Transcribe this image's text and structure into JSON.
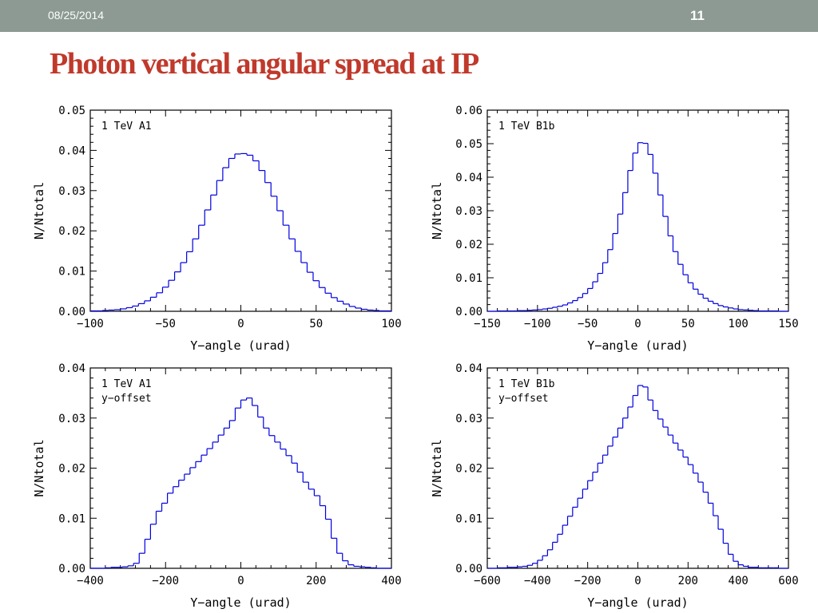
{
  "header": {
    "date": "08/25/2014",
    "page_number": "11"
  },
  "slide": {
    "title": "Photon vertical angular spread at IP"
  },
  "colors": {
    "header_bar": "#8c9a93",
    "title": "#c0392b",
    "histogram": "#0000e0"
  },
  "chart_data": [
    {
      "type": "histogram",
      "annotation": [
        "1 TeV A1"
      ],
      "xlabel": "Y−angle (urad)",
      "ylabel": "N/Ntotal",
      "xlim": [
        -100,
        100
      ],
      "ylim": [
        0,
        0.05
      ],
      "xticks": [
        -100,
        -50,
        0,
        50,
        100
      ],
      "xtick_labels": [
        "−100",
        "−50",
        "0",
        "50",
        "100"
      ],
      "yticks": [
        0,
        0.01,
        0.02,
        0.03,
        0.04,
        0.05
      ],
      "ytick_labels": [
        "0.00",
        "0.01",
        "0.02",
        "0.03",
        "0.04",
        "0.05"
      ],
      "bin_width": 4,
      "x": [
        -100,
        -96,
        -92,
        -88,
        -84,
        -80,
        -76,
        -72,
        -68,
        -64,
        -60,
        -56,
        -52,
        -48,
        -44,
        -40,
        -36,
        -32,
        -28,
        -24,
        -20,
        -16,
        -12,
        -8,
        -4,
        0,
        4,
        8,
        12,
        16,
        20,
        24,
        28,
        32,
        36,
        40,
        44,
        48,
        52,
        56,
        60,
        64,
        68,
        72,
        76,
        80,
        84,
        88,
        92,
        96
      ],
      "values": [
        0.0001,
        0.0001,
        0.0002,
        0.0003,
        0.0004,
        0.0006,
        0.0009,
        0.0013,
        0.0019,
        0.0026,
        0.0035,
        0.0046,
        0.006,
        0.0077,
        0.0098,
        0.0121,
        0.0148,
        0.018,
        0.0214,
        0.0252,
        0.0289,
        0.0325,
        0.0357,
        0.038,
        0.0391,
        0.0392,
        0.0388,
        0.0374,
        0.035,
        0.032,
        0.0286,
        0.025,
        0.0214,
        0.018,
        0.0149,
        0.0121,
        0.0097,
        0.0076,
        0.0059,
        0.0045,
        0.0034,
        0.0025,
        0.0018,
        0.0012,
        0.0008,
        0.0005,
        0.0003,
        0.0002,
        0.0001,
        0.0001
      ]
    },
    {
      "type": "histogram",
      "annotation": [
        "1 TeV B1b"
      ],
      "xlabel": "Y−angle (urad)",
      "ylabel": "N/Ntotal",
      "xlim": [
        -150,
        150
      ],
      "ylim": [
        0,
        0.06
      ],
      "xticks": [
        -150,
        -100,
        -50,
        0,
        50,
        100,
        150
      ],
      "xtick_labels": [
        "−150",
        "−100",
        "−50",
        "0",
        "50",
        "100",
        "150"
      ],
      "yticks": [
        0,
        0.01,
        0.02,
        0.03,
        0.04,
        0.05,
        0.06
      ],
      "ytick_labels": [
        "0.00",
        "0.01",
        "0.02",
        "0.03",
        "0.04",
        "0.05",
        "0.06"
      ],
      "bin_width": 5,
      "x": [
        -140,
        -135,
        -130,
        -125,
        -120,
        -115,
        -110,
        -105,
        -100,
        -95,
        -90,
        -85,
        -80,
        -75,
        -70,
        -65,
        -60,
        -55,
        -50,
        -45,
        -40,
        -35,
        -30,
        -25,
        -20,
        -15,
        -10,
        -5,
        0,
        5,
        10,
        15,
        20,
        25,
        30,
        35,
        40,
        45,
        50,
        55,
        60,
        65,
        70,
        75,
        80,
        85,
        90,
        95,
        100,
        105,
        110,
        115,
        120,
        125,
        130,
        135
      ],
      "values": [
        0.0001,
        0.0001,
        0.0001,
        0.0001,
        0.0002,
        0.0002,
        0.0003,
        0.0004,
        0.0005,
        0.0007,
        0.0009,
        0.0012,
        0.0015,
        0.0019,
        0.0025,
        0.0032,
        0.0041,
        0.0053,
        0.0068,
        0.0088,
        0.0113,
        0.0145,
        0.0184,
        0.0232,
        0.029,
        0.0354,
        0.042,
        0.0472,
        0.0503,
        0.0501,
        0.0468,
        0.0412,
        0.0347,
        0.0283,
        0.0225,
        0.0178,
        0.014,
        0.0109,
        0.0085,
        0.0066,
        0.0051,
        0.0039,
        0.003,
        0.0023,
        0.0017,
        0.0013,
        0.001,
        0.0007,
        0.0005,
        0.0004,
        0.0003,
        0.0002,
        0.0001,
        0.0001,
        0.0001,
        0.0001
      ]
    },
    {
      "type": "histogram",
      "annotation": [
        "1 TeV A1",
        "y−offset"
      ],
      "xlabel": "Y−angle (urad)",
      "ylabel": "N/Ntotal",
      "xlim": [
        -400,
        400
      ],
      "ylim": [
        0,
        0.04
      ],
      "xticks": [
        -400,
        -200,
        0,
        200,
        400
      ],
      "xtick_labels": [
        "−400",
        "−200",
        "0",
        "200",
        "400"
      ],
      "yticks": [
        0,
        0.01,
        0.02,
        0.03,
        0.04
      ],
      "ytick_labels": [
        "0.00",
        "0.01",
        "0.02",
        "0.03",
        "0.04"
      ],
      "bin_width": 15,
      "x": [
        -360,
        -345,
        -330,
        -315,
        -300,
        -285,
        -270,
        -255,
        -240,
        -225,
        -210,
        -195,
        -180,
        -165,
        -150,
        -135,
        -120,
        -105,
        -90,
        -75,
        -60,
        -45,
        -30,
        -15,
        0,
        15,
        30,
        45,
        60,
        75,
        90,
        105,
        120,
        135,
        150,
        165,
        180,
        195,
        210,
        225,
        240,
        255,
        270,
        285,
        300,
        315,
        330,
        345
      ],
      "values": [
        0.0001,
        0.0002,
        0.0002,
        0.0003,
        0.0005,
        0.001,
        0.003,
        0.0058,
        0.0088,
        0.0114,
        0.013,
        0.015,
        0.0163,
        0.0176,
        0.0188,
        0.0201,
        0.0213,
        0.0226,
        0.0239,
        0.0252,
        0.0266,
        0.028,
        0.0295,
        0.032,
        0.0336,
        0.034,
        0.0325,
        0.0302,
        0.028,
        0.0265,
        0.0252,
        0.0238,
        0.0225,
        0.021,
        0.0192,
        0.0172,
        0.0158,
        0.0145,
        0.0125,
        0.0098,
        0.006,
        0.003,
        0.0015,
        0.0007,
        0.0004,
        0.0003,
        0.0002,
        0.0001
      ]
    },
    {
      "type": "histogram",
      "annotation": [
        "1 TeV B1b",
        "y−offset"
      ],
      "xlabel": "Y−angle (urad)",
      "ylabel": "N/Ntotal",
      "xlim": [
        -600,
        600
      ],
      "ylim": [
        0,
        0.04
      ],
      "xticks": [
        -600,
        -400,
        -200,
        0,
        200,
        400,
        600
      ],
      "xtick_labels": [
        "−600",
        "−400",
        "−200",
        "0",
        "200",
        "400",
        "600"
      ],
      "yticks": [
        0,
        0.01,
        0.02,
        0.03,
        0.04
      ],
      "ytick_labels": [
        "0.00",
        "0.01",
        "0.02",
        "0.03",
        "0.04"
      ],
      "bin_width": 20,
      "x": [
        -560,
        -540,
        -520,
        -500,
        -480,
        -460,
        -440,
        -420,
        -400,
        -380,
        -360,
        -340,
        -320,
        -300,
        -280,
        -260,
        -240,
        -220,
        -200,
        -180,
        -160,
        -140,
        -120,
        -100,
        -80,
        -60,
        -40,
        -20,
        0,
        20,
        40,
        60,
        80,
        100,
        120,
        140,
        160,
        180,
        200,
        220,
        240,
        260,
        280,
        300,
        320,
        340,
        360,
        380,
        400,
        420,
        440,
        460,
        480,
        500,
        520,
        540
      ],
      "values": [
        0.0001,
        0.0001,
        0.0002,
        0.0002,
        0.0003,
        0.0004,
        0.0006,
        0.001,
        0.0016,
        0.0025,
        0.0037,
        0.0052,
        0.0068,
        0.0086,
        0.0104,
        0.0122,
        0.014,
        0.0158,
        0.0175,
        0.0192,
        0.021,
        0.0226,
        0.0244,
        0.0262,
        0.028,
        0.03,
        0.0322,
        0.0345,
        0.0365,
        0.0362,
        0.0336,
        0.0315,
        0.0298,
        0.0282,
        0.0266,
        0.025,
        0.0236,
        0.0222,
        0.0207,
        0.019,
        0.0172,
        0.0152,
        0.013,
        0.0105,
        0.0078,
        0.005,
        0.0028,
        0.0014,
        0.0007,
        0.0004,
        0.0002,
        0.0002,
        0.0001,
        0.0001,
        0.0001,
        0.0001
      ]
    }
  ]
}
